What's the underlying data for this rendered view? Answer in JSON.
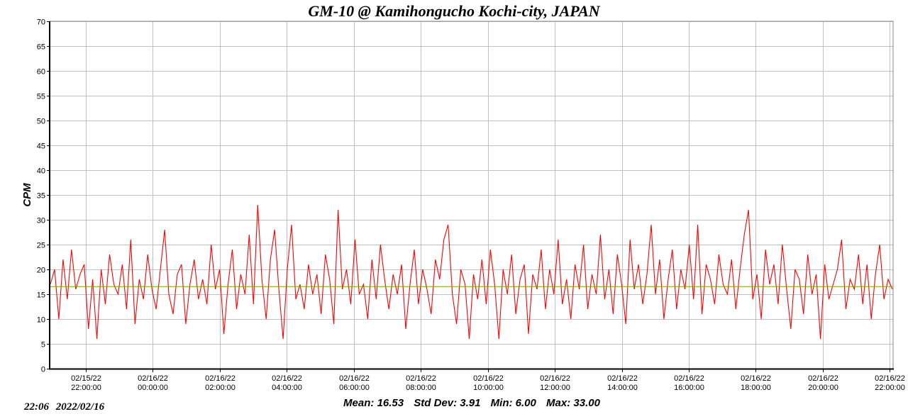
{
  "chart_data": {
    "type": "line",
    "title": "GM-10 @ Kamihongucho Kochi-city, JAPAN",
    "ylabel": "CPM",
    "xlabel": "",
    "ylim": [
      0,
      70
    ],
    "yticks": [
      0,
      5,
      10,
      15,
      20,
      25,
      30,
      35,
      40,
      45,
      50,
      55,
      60,
      65,
      70
    ],
    "x_origin": "02/15/22 00:00",
    "xlim_hours": [
      20.92,
      46.1
    ],
    "xticks": [
      {
        "hours": 22,
        "date": "02/15/22",
        "time": "22:00:00"
      },
      {
        "hours": 24,
        "date": "02/16/22",
        "time": "00:00:00"
      },
      {
        "hours": 26,
        "date": "02/16/22",
        "time": "02:00:00"
      },
      {
        "hours": 28,
        "date": "02/16/22",
        "time": "04:00:00"
      },
      {
        "hours": 30,
        "date": "02/16/22",
        "time": "06:00:00"
      },
      {
        "hours": 32,
        "date": "02/16/22",
        "time": "08:00:00"
      },
      {
        "hours": 34,
        "date": "02/16/22",
        "time": "10:00:00"
      },
      {
        "hours": 36,
        "date": "02/16/22",
        "time": "12:00:00"
      },
      {
        "hours": 38,
        "date": "02/16/22",
        "time": "14:00:00"
      },
      {
        "hours": 40,
        "date": "02/16/22",
        "time": "16:00:00"
      },
      {
        "hours": 42,
        "date": "02/16/22",
        "time": "18:00:00"
      },
      {
        "hours": 44,
        "date": "02/16/22",
        "time": "20:00:00"
      },
      {
        "hours": 46,
        "date": "02/16/22",
        "time": "22:00:00"
      }
    ],
    "grid": true,
    "series": [
      {
        "name": "CPM",
        "color": "#ff0000",
        "values": [
          17,
          20,
          10,
          22,
          14,
          24,
          16,
          19,
          21,
          8,
          18,
          6,
          20,
          13,
          23,
          17,
          15,
          21,
          12,
          26,
          9,
          18,
          14,
          23,
          16,
          12,
          20,
          28,
          15,
          11,
          19,
          21,
          9,
          17,
          22,
          14,
          18,
          13,
          25,
          16,
          20,
          7,
          17,
          24,
          12,
          19,
          15,
          27,
          13,
          33,
          18,
          10,
          22,
          28,
          16,
          6,
          20,
          29,
          14,
          17,
          12,
          21,
          15,
          19,
          11,
          23,
          18,
          9,
          32,
          16,
          20,
          13,
          26,
          15,
          17,
          10,
          22,
          14,
          25,
          18,
          12,
          19,
          15,
          21,
          8,
          17,
          24,
          13,
          20,
          16,
          11,
          22,
          18,
          26,
          29,
          15,
          9,
          20,
          17,
          6,
          19,
          14,
          22,
          13,
          24,
          17,
          6,
          20,
          15,
          23,
          11,
          18,
          21,
          7,
          19,
          16,
          24,
          12,
          20,
          15,
          26,
          13,
          18,
          10,
          21,
          16,
          25,
          12,
          19,
          15,
          27,
          14,
          20,
          11,
          23,
          17,
          9,
          26,
          16,
          21,
          13,
          19,
          29,
          15,
          22,
          10,
          18,
          24,
          12,
          20,
          16,
          25,
          14,
          29,
          11,
          21,
          18,
          13,
          23,
          17,
          15,
          22,
          12,
          20,
          27,
          32,
          14,
          19,
          10,
          24,
          17,
          21,
          13,
          25,
          16,
          8,
          20,
          18,
          11,
          23,
          15,
          19,
          6,
          21,
          14,
          17,
          20,
          26,
          12,
          18,
          16,
          23,
          13,
          21,
          10,
          19,
          25,
          14,
          18,
          16
        ]
      },
      {
        "name": "Mean",
        "color": "#7fa000",
        "value": 16.53
      }
    ],
    "stats": {
      "mean_label": "Mean:",
      "mean": "16.53",
      "std_label": "Std Dev:",
      "std": "3.91",
      "min_label": "Min:",
      "min": "6.00",
      "max_label": "Max:",
      "max": "33.00"
    }
  },
  "timestamp": {
    "time": "22:06",
    "date": "2022/02/16"
  }
}
